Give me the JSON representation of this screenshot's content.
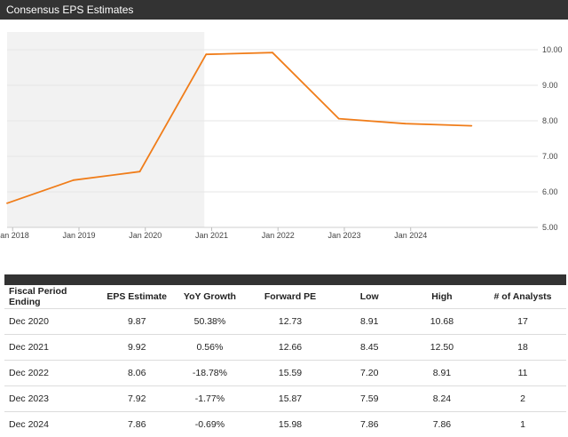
{
  "header": {
    "title": "Consensus EPS Estimates"
  },
  "chart_data": {
    "type": "line",
    "title": "",
    "xlabel": "",
    "ylabel": "",
    "x_ticks": [
      "Jan 2018",
      "Jan 2019",
      "Jan 2020",
      "Jan 2021",
      "Jan 2022",
      "Jan 2023",
      "Jan 2024"
    ],
    "y_ticks": [
      "5.00",
      "6.00",
      "7.00",
      "8.00",
      "9.00",
      "10.00"
    ],
    "ylim": [
      5,
      10.5
    ],
    "xlim": [
      "2017-12",
      "2025-12"
    ],
    "grid": "horizontal",
    "legend": "none",
    "shaded_region": {
      "from": "2017-12",
      "to": "2020-12",
      "meaning": "historical",
      "color": "#f2f2f2"
    },
    "series": [
      {
        "color": "#f07d1a",
        "points": [
          {
            "x": "2017-12",
            "y": 5.68
          },
          {
            "x": "2018-12",
            "y": 6.33
          },
          {
            "x": "2019-12",
            "y": 6.57
          },
          {
            "x": "2020-12",
            "y": 9.87
          },
          {
            "x": "2021-12",
            "y": 9.92
          },
          {
            "x": "2022-12",
            "y": 8.06
          },
          {
            "x": "2023-12",
            "y": 7.92
          },
          {
            "x": "2024-12",
            "y": 7.86
          }
        ]
      }
    ]
  },
  "table": {
    "headers": [
      "Fiscal Period Ending",
      "EPS Estimate",
      "YoY Growth",
      "Forward PE",
      "Low",
      "High",
      "# of Analysts"
    ],
    "rows": [
      [
        "Dec 2020",
        "9.87",
        "50.38%",
        "12.73",
        "8.91",
        "10.68",
        "17"
      ],
      [
        "Dec 2021",
        "9.92",
        "0.56%",
        "12.66",
        "8.45",
        "12.50",
        "18"
      ],
      [
        "Dec 2022",
        "8.06",
        "-18.78%",
        "15.59",
        "7.20",
        "8.91",
        "11"
      ],
      [
        "Dec 2023",
        "7.92",
        "-1.77%",
        "15.87",
        "7.59",
        "8.24",
        "2"
      ],
      [
        "Dec 2024",
        "7.86",
        "-0.69%",
        "15.98",
        "7.86",
        "7.86",
        "1"
      ]
    ]
  }
}
